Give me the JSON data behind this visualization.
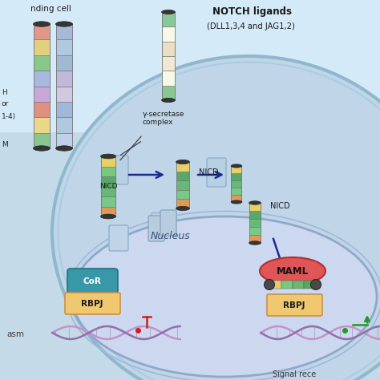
{
  "bg_color": "#c5dae8",
  "sending_cell_color": "#d8ebf5",
  "receiving_cell_color": "#c2d8eb",
  "nucleus_color": "#ccd8f0",
  "cytoplasm_color": "#c8daf0",
  "membrane_edge": "#90b8cc",
  "nucleus_edge": "#90a8c8",
  "title1": "NOTCH ligands",
  "title2": "(DLL1,3,4 and JAG1,2)",
  "label_sending": "nding cell",
  "label_cytoplasm": "asm",
  "label_nucleus": "Nucleus",
  "label_signal": "Signal rece",
  "label_gamma": "γ-secretase\ncomplex",
  "label_nicd": "NICD",
  "label_maml": "MAML",
  "label_rbpj": "RBPJ",
  "label_cor": "CoR",
  "label_notch_partial": "H\nor\n1-4)",
  "label_tm": "M",
  "arrow_color": "#1a2a90",
  "green_arrow": "#229922",
  "red_inhibit": "#cc2020",
  "dna_col1": "#c890c8",
  "dna_col2": "#9070a8",
  "maml_color": "#e05555",
  "maml_edge": "#b03030",
  "rbpj_color": "#f0c870",
  "rbpj_edge": "#c8904a",
  "cor_color": "#3898a8",
  "cor_edge": "#207080",
  "notch_bands": [
    "#88c890",
    "#e8d888",
    "#e09080",
    "#c8a8d8",
    "#a8b8e0",
    "#88c888",
    "#e0d080",
    "#e09888"
  ],
  "nicd_bands": [
    "#e09858",
    "#78c888",
    "#68b878",
    "#58a868",
    "#e8d068"
  ],
  "ligand_bands": [
    "#88c890",
    "#f8f8e8",
    "#f0e8d0",
    "#e8e0c0",
    "#f8f8e8",
    "#88c898"
  ],
  "receptor_at_membrane_bands": [
    "#e09858",
    "#78c888",
    "#68b878",
    "#58a868",
    "#78c880",
    "#e8d068"
  ]
}
